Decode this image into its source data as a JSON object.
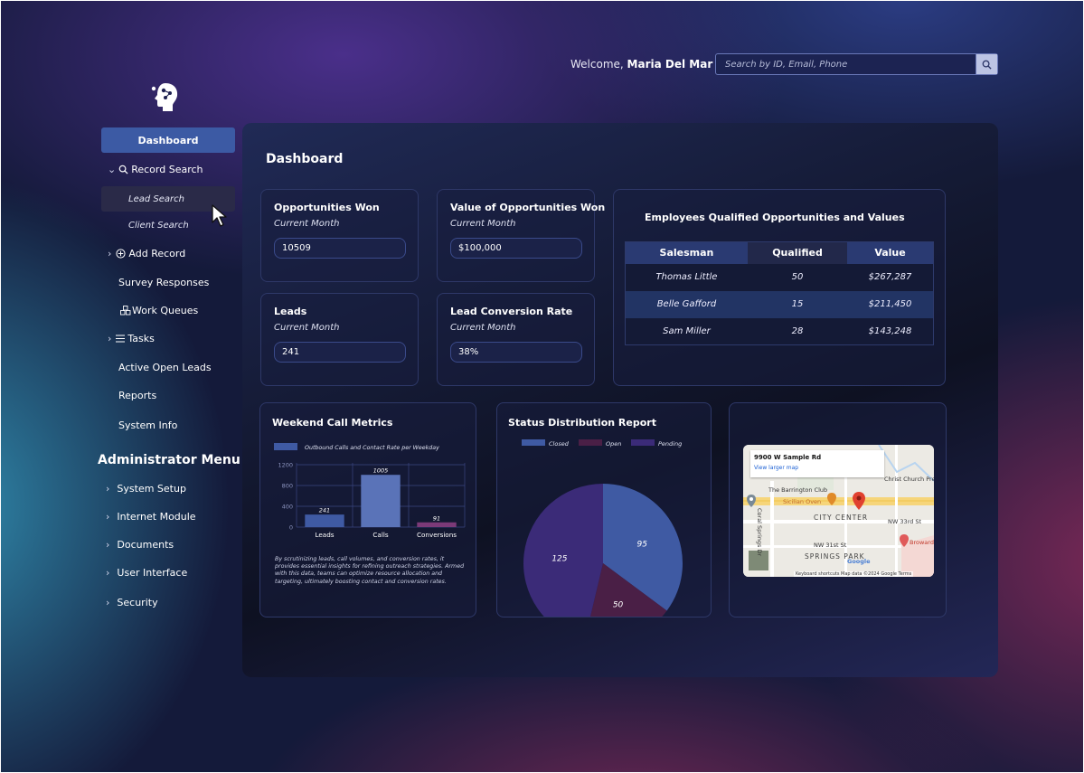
{
  "header": {
    "welcome_prefix": "Welcome,",
    "user_name": "Maria Del Mar",
    "search_placeholder": "Search by ID, Email, Phone"
  },
  "sidebar": {
    "dashboard": "Dashboard",
    "record_search": "Record Search",
    "lead_search": "Lead Search",
    "client_search": "Client Search",
    "add_record": "Add Record",
    "survey_responses": "Survey Responses",
    "work_queues": "Work Queues",
    "tasks": "Tasks",
    "active_open_leads": "Active Open Leads",
    "reports": "Reports",
    "system_info": "System Info",
    "admin_title": "Administrator Menu",
    "admin_items": [
      "System Setup",
      "Internet Module",
      "Documents",
      "User Interface",
      "Security"
    ]
  },
  "main": {
    "title": "Dashboard",
    "metrics": [
      {
        "title": "Opportunities Won",
        "sub": "Current Month",
        "value": "10509"
      },
      {
        "title": "Value of Opportunities Won",
        "sub": "Current Month",
        "value": "$100,000"
      },
      {
        "title": "Leads",
        "sub": "Current Month",
        "value": "241"
      },
      {
        "title": "Lead Conversion Rate",
        "sub": "Current Month",
        "value": "38%"
      }
    ],
    "employee_table": {
      "title": "Employees Qualified Opportunities and Values",
      "headers": [
        "Salesman",
        "Qualified",
        "Value"
      ],
      "rows": [
        [
          "Thomas Little",
          "50",
          "$267,287"
        ],
        [
          "Belle Gafford",
          "15",
          "$211,450"
        ],
        [
          "Sam Miller",
          "28",
          "$143,248"
        ]
      ]
    },
    "weekend_title": "Weekend Call Metrics",
    "weekend_desc": "By scrutinizing leads, call volumes, and conversion rates, it provides essential insights for refining outreach strategies. Armed with this data, teams can optimize resource allocation and targeting, ultimately boosting contact and conversion rates.",
    "status_title": "Status Distribution Report",
    "map": {
      "address": "9900 W Sample Rd",
      "link": "View larger map",
      "labels": [
        "Christ Church Preschool",
        "The Barrington Club",
        "Sicilian Oven",
        "CITY CENTER",
        "NW 33rd St",
        "NW 31st St",
        "SPRINGS PARK",
        "Coral Springs Dr",
        "Broward Coral S"
      ],
      "footer": "Keyboard shortcuts   Map data ©2024 Google   Terms",
      "google": "Google"
    }
  },
  "chart_data": [
    {
      "type": "bar",
      "title": "Weekend Call Metrics",
      "categories": [
        "Leads",
        "Calls",
        "Conversions"
      ],
      "series": [
        {
          "name": "Outbound Calls and Contact Rate per Weekday",
          "values": [
            241,
            1005,
            91
          ]
        }
      ],
      "ylim": [
        0,
        1200
      ],
      "yticks": [
        0,
        400,
        800,
        1200
      ],
      "grid": true,
      "legend": "top-left",
      "colors": [
        "#3f5aa3",
        "#5a73b8",
        "#7b3a78"
      ]
    },
    {
      "type": "pie",
      "title": "Status Distribution Report",
      "categories": [
        "Closed",
        "Open",
        "Pending"
      ],
      "values": [
        95,
        50,
        125
      ],
      "colors": [
        "#3f5aa3",
        "#4a1f46",
        "#3b2b78"
      ],
      "legend": "top"
    }
  ],
  "colors": {
    "accent": "#3c5aa4",
    "panel": "#12172e",
    "map_pin": "#e0412f"
  }
}
